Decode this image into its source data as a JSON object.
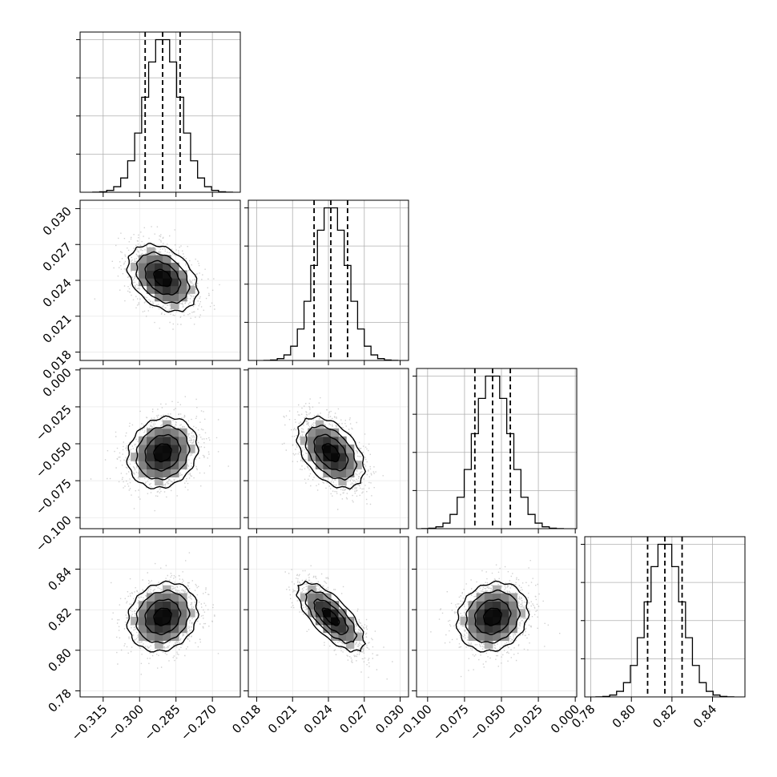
{
  "chart_data": {
    "type": "corner",
    "grid": true,
    "params": [
      {
        "mean": -0.2905,
        "sd": 0.0072,
        "q16": -0.2977,
        "q50": -0.2905,
        "q84": -0.2833,
        "range": [
          -0.3245,
          -0.2585
        ],
        "ticks": [
          -0.315,
          -0.3,
          -0.285,
          -0.27
        ],
        "tick_labels": [
          "−0.315",
          "−0.300",
          "−0.285",
          "−0.270"
        ]
      },
      {
        "mean": 0.0242,
        "sd": 0.0014,
        "q16": 0.0228,
        "q50": 0.0242,
        "q84": 0.0256,
        "range": [
          0.0173,
          0.0307
        ],
        "ticks": [
          0.018,
          0.021,
          0.024,
          0.027,
          0.03
        ],
        "tick_labels": [
          "0.018",
          "0.021",
          "0.024",
          "0.027",
          "0.030"
        ]
      },
      {
        "mean": -0.056,
        "sd": 0.012,
        "q16": -0.068,
        "q50": -0.056,
        "q84": -0.044,
        "range": [
          -0.1075,
          0.001
        ],
        "ticks": [
          -0.1,
          -0.075,
          -0.05,
          -0.025,
          0.0
        ],
        "tick_labels": [
          "−0.100",
          "−0.075",
          "−0.050",
          "−0.025",
          "0.000"
        ]
      },
      {
        "mean": 0.8165,
        "sd": 0.0085,
        "q16": 0.808,
        "q50": 0.8165,
        "q84": 0.825,
        "range": [
          0.777,
          0.856
        ],
        "ticks": [
          0.78,
          0.8,
          0.82,
          0.84
        ],
        "tick_labels": [
          "0.78",
          "0.80",
          "0.82",
          "0.84"
        ]
      }
    ],
    "correlations": [
      {
        "i": 0,
        "j": 1,
        "rho": -0.35
      },
      {
        "i": 0,
        "j": 2,
        "rho": 0.15
      },
      {
        "i": 1,
        "j": 2,
        "rho": -0.45
      },
      {
        "i": 0,
        "j": 3,
        "rho": 0.15
      },
      {
        "i": 1,
        "j": 3,
        "rho": -0.72
      },
      {
        "i": 2,
        "j": 3,
        "rho": 0.15
      }
    ]
  }
}
